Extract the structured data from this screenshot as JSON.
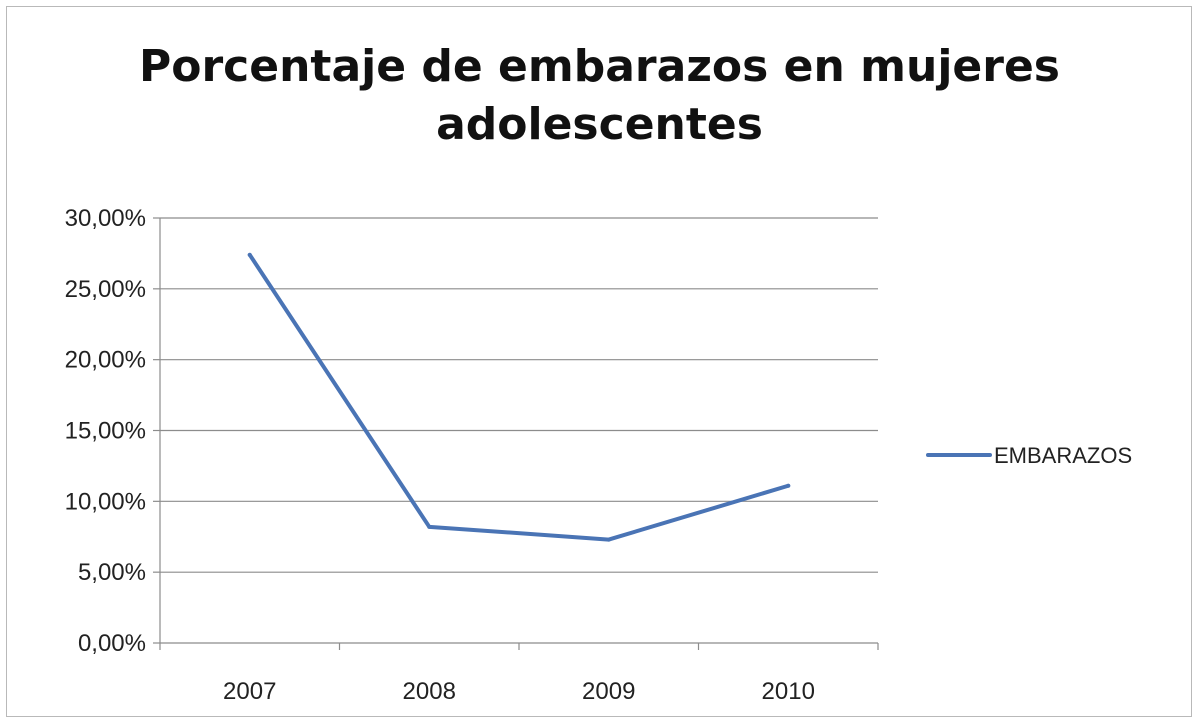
{
  "chart_data": {
    "type": "line",
    "title_lines": [
      "Porcentaje de embarazos en  mujeres",
      "adolescentes"
    ],
    "categories": [
      "2007",
      "2008",
      "2009",
      "2010"
    ],
    "series": [
      {
        "name": "EMBARAZOS",
        "values": [
          27.4,
          8.2,
          7.3,
          11.1
        ],
        "color": "#4a74b5"
      }
    ],
    "y_ticks": [
      "0,00%",
      "5,00%",
      "10,00%",
      "15,00%",
      "20,00%",
      "25,00%",
      "30,00%"
    ],
    "ylim": [
      0,
      30
    ],
    "y_step": 5,
    "grid": true,
    "legend_position": "right",
    "gridline_color": "#8c8c8c"
  }
}
